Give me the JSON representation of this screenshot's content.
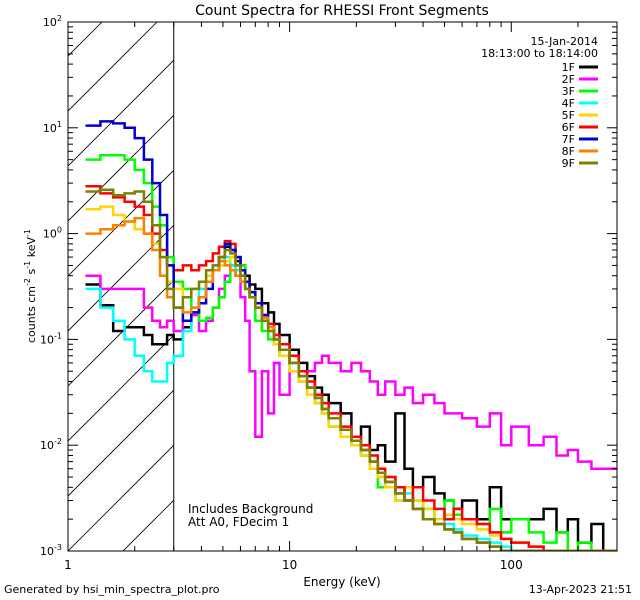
{
  "chart_data": {
    "type": "line",
    "title": "Count Spectra for RHESSI Front Segments",
    "xlabel": "Energy (keV)",
    "ylabel": {
      "base": "counts cm",
      "exp1": "-2",
      "mid": " s",
      "exp2": "-1",
      "tail": " keV",
      "exp3": "-1"
    },
    "xscale": "log",
    "yscale": "log",
    "xlim": [
      1,
      300
    ],
    "ylim": [
      0.001,
      100
    ],
    "xticks": [
      {
        "value": 1,
        "label": "1"
      },
      {
        "value": 10,
        "label": "10"
      },
      {
        "value": 100,
        "label": "100"
      }
    ],
    "yticks": [
      {
        "value": 0.001,
        "base": "10",
        "exp": "-3"
      },
      {
        "value": 0.01,
        "base": "10",
        "exp": "-2"
      },
      {
        "value": 0.1,
        "base": "10",
        "exp": "-1"
      },
      {
        "value": 1,
        "base": "10",
        "exp": "0"
      },
      {
        "value": 10,
        "base": "10",
        "exp": "1"
      },
      {
        "value": 100,
        "base": "10",
        "exp": "2"
      }
    ],
    "shaded_region_keV": [
      1,
      3
    ],
    "date": "15-Jan-2014",
    "time_range": "18:13:00 to 18:14:00",
    "annotations": [
      "Includes Background",
      "Att A0, FDecim 1"
    ],
    "bin_edges": [
      1.2,
      1.4,
      1.6,
      1.8,
      2.0,
      2.2,
      2.4,
      2.6,
      2.8,
      3.0,
      3.3,
      3.6,
      3.9,
      4.2,
      4.5,
      4.8,
      5.1,
      5.4,
      5.7,
      6.0,
      6.3,
      6.6,
      7.0,
      7.5,
      8.0,
      8.5,
      9.0,
      10.0,
      11.0,
      12.0,
      13.0,
      14.0,
      15.0,
      17.0,
      19.0,
      21.0,
      23.0,
      25.0,
      27.0,
      30.0,
      33.0,
      36.0,
      40.0,
      45.0,
      50.0,
      55.0,
      60.0,
      70.0,
      80.0,
      90.0,
      100.0,
      120.0,
      140.0,
      160.0,
      180.0,
      200.0,
      230.0,
      260.0,
      300.0
    ],
    "series": [
      {
        "name": "1F",
        "color": "#000000",
        "values": [
          0.33,
          0.21,
          0.12,
          0.13,
          0.13,
          0.11,
          0.09,
          0.09,
          0.11,
          0.1,
          0.13,
          0.18,
          0.25,
          0.35,
          0.45,
          0.6,
          0.75,
          0.7,
          0.55,
          0.5,
          0.4,
          0.33,
          0.3,
          0.22,
          0.18,
          0.14,
          0.11,
          0.08,
          0.06,
          0.045,
          0.035,
          0.03,
          0.025,
          0.02,
          0.012,
          0.015,
          0.009,
          0.01,
          0.007,
          0.02,
          0.006,
          0.004,
          0.005,
          0.0035,
          0.003,
          0.0025,
          0.003,
          0.002,
          0.004,
          0.002,
          0.002,
          0.002,
          0.0025,
          0.0015,
          0.002,
          0.0012,
          0.0018,
          0.001
        ]
      },
      {
        "name": "2F",
        "color": "#ff00ff",
        "values": [
          0.4,
          0.3,
          0.3,
          0.3,
          0.3,
          0.2,
          0.15,
          0.13,
          0.15,
          0.12,
          0.15,
          0.17,
          0.12,
          0.15,
          0.2,
          0.3,
          0.4,
          0.45,
          0.4,
          0.25,
          0.15,
          0.05,
          0.012,
          0.05,
          0.02,
          0.06,
          0.03,
          0.05,
          0.04,
          0.05,
          0.06,
          0.07,
          0.06,
          0.05,
          0.06,
          0.05,
          0.04,
          0.03,
          0.04,
          0.03,
          0.035,
          0.025,
          0.03,
          0.025,
          0.02,
          0.02,
          0.018,
          0.015,
          0.02,
          0.01,
          0.015,
          0.01,
          0.012,
          0.008,
          0.009,
          0.007,
          0.006,
          0.006
        ]
      },
      {
        "name": "3F",
        "color": "#00ff00",
        "values": [
          5.0,
          5.5,
          5.5,
          5.0,
          4.0,
          3.0,
          1.8,
          1.2,
          0.6,
          0.35,
          0.3,
          0.18,
          0.15,
          0.16,
          0.2,
          0.25,
          0.35,
          0.5,
          0.6,
          0.5,
          0.3,
          0.25,
          0.15,
          0.12,
          0.1,
          0.09,
          0.07,
          0.05,
          0.04,
          0.03,
          0.025,
          0.02,
          0.015,
          0.012,
          0.01,
          0.008,
          0.006,
          0.004,
          0.005,
          0.003,
          0.004,
          0.003,
          0.0025,
          0.002,
          0.003,
          0.0022,
          0.002,
          0.0018,
          0.0025,
          0.0015,
          0.002,
          0.0015,
          0.0012,
          0.0015,
          0.001,
          0.0012,
          0.001,
          0.001
        ]
      },
      {
        "name": "4F",
        "color": "#00ffff",
        "values": [
          0.3,
          0.2,
          0.15,
          0.1,
          0.07,
          0.05,
          0.04,
          0.04,
          0.06,
          0.07,
          0.12,
          0.2,
          0.3,
          0.4,
          0.5,
          0.55,
          0.6,
          0.5,
          0.45,
          0.4,
          0.3,
          0.25,
          0.2,
          0.15,
          0.12,
          0.09,
          0.07,
          0.05,
          0.04,
          0.03,
          0.025,
          0.02,
          0.015,
          0.012,
          0.01,
          0.008,
          0.006,
          0.005,
          0.004,
          0.003,
          0.0035,
          0.003,
          0.0025,
          0.002,
          0.0018,
          0.0016,
          0.0014,
          0.0013,
          0.0012,
          0.0011,
          0.001,
          0.001,
          0.001,
          0.001,
          0.001,
          0.001,
          0.001,
          0.001
        ]
      },
      {
        "name": "5F",
        "color": "#ffd700",
        "values": [
          1.7,
          1.8,
          1.5,
          1.3,
          1.1,
          1.0,
          0.8,
          0.6,
          0.35,
          0.3,
          0.25,
          0.3,
          0.35,
          0.4,
          0.45,
          0.5,
          0.55,
          0.6,
          0.5,
          0.4,
          0.3,
          0.25,
          0.2,
          0.15,
          0.12,
          0.09,
          0.07,
          0.05,
          0.04,
          0.03,
          0.025,
          0.02,
          0.015,
          0.012,
          0.01,
          0.008,
          0.006,
          0.005,
          0.004,
          0.003,
          0.004,
          0.003,
          0.0025,
          0.002,
          0.0022,
          0.002,
          0.0018,
          0.0016,
          0.0014,
          0.0013,
          0.0012,
          0.0011,
          0.001,
          0.001,
          0.001,
          0.001,
          0.001,
          0.001
        ]
      },
      {
        "name": "6F",
        "color": "#ff0000",
        "values": [
          2.8,
          2.4,
          2.2,
          2.0,
          1.8,
          1.5,
          1.0,
          0.7,
          0.5,
          0.45,
          0.5,
          0.45,
          0.5,
          0.55,
          0.65,
          0.75,
          0.85,
          0.8,
          0.6,
          0.45,
          0.35,
          0.28,
          0.22,
          0.17,
          0.14,
          0.11,
          0.09,
          0.07,
          0.05,
          0.04,
          0.03,
          0.025,
          0.02,
          0.015,
          0.012,
          0.01,
          0.008,
          0.006,
          0.005,
          0.004,
          0.003,
          0.004,
          0.003,
          0.0025,
          0.002,
          0.0025,
          0.002,
          0.0018,
          0.0015,
          0.0013,
          0.0012,
          0.0011,
          0.001,
          0.001,
          0.001,
          0.001,
          0.001,
          0.001
        ]
      },
      {
        "name": "7F",
        "color": "#0000cc",
        "values": [
          10.5,
          11.5,
          11.0,
          10.0,
          8.0,
          5.0,
          3.0,
          1.5,
          0.5,
          0.2,
          0.15,
          0.18,
          0.22,
          0.3,
          0.45,
          0.6,
          0.8,
          0.7,
          0.6,
          0.45,
          0.35,
          0.28,
          0.22,
          0.17,
          0.13,
          0.1,
          0.08,
          0.06,
          0.045,
          0.035,
          0.028,
          0.022,
          0.018,
          0.014,
          0.011,
          0.009,
          0.007,
          0.0055,
          0.0045,
          0.0035,
          0.003,
          0.0025,
          0.002,
          0.0018,
          0.0016,
          0.0015,
          0.0013,
          0.0012,
          0.0011,
          0.001,
          0.001,
          0.001,
          0.001,
          0.001,
          0.001,
          0.001,
          0.001,
          0.001
        ]
      },
      {
        "name": "8F",
        "color": "#ff8000",
        "values": [
          1.0,
          1.1,
          1.2,
          1.3,
          1.4,
          1.0,
          0.7,
          0.4,
          0.25,
          0.2,
          0.18,
          0.2,
          0.25,
          0.35,
          0.45,
          0.55,
          0.5,
          0.45,
          0.4,
          0.35,
          0.3,
          0.25,
          0.2,
          0.16,
          0.13,
          0.1,
          0.08,
          0.06,
          0.045,
          0.035,
          0.028,
          0.022,
          0.018,
          0.014,
          0.011,
          0.009,
          0.007,
          0.0055,
          0.0045,
          0.0035,
          0.003,
          0.0025,
          0.002,
          0.0018,
          0.0016,
          0.0015,
          0.0013,
          0.0012,
          0.0011,
          0.001,
          0.001,
          0.001,
          0.001,
          0.001,
          0.001,
          0.001,
          0.001,
          0.001
        ]
      },
      {
        "name": "9F",
        "color": "#808000",
        "values": [
          2.5,
          2.6,
          2.3,
          2.4,
          2.5,
          2.0,
          1.2,
          0.6,
          0.3,
          0.2,
          0.25,
          0.3,
          0.35,
          0.45,
          0.5,
          0.6,
          0.7,
          0.65,
          0.5,
          0.4,
          0.3,
          0.25,
          0.2,
          0.15,
          0.12,
          0.1,
          0.08,
          0.06,
          0.045,
          0.035,
          0.028,
          0.022,
          0.018,
          0.014,
          0.011,
          0.009,
          0.007,
          0.0055,
          0.0045,
          0.0035,
          0.003,
          0.0025,
          0.002,
          0.0018,
          0.0016,
          0.0015,
          0.0013,
          0.0012,
          0.0011,
          0.001,
          0.001,
          0.001,
          0.001,
          0.001,
          0.001,
          0.001,
          0.001,
          0.001
        ]
      }
    ]
  },
  "footer": {
    "generated_by": "Generated by hsi_min_spectra_plot.pro",
    "timestamp": "13-Apr-2023 21:51"
  }
}
